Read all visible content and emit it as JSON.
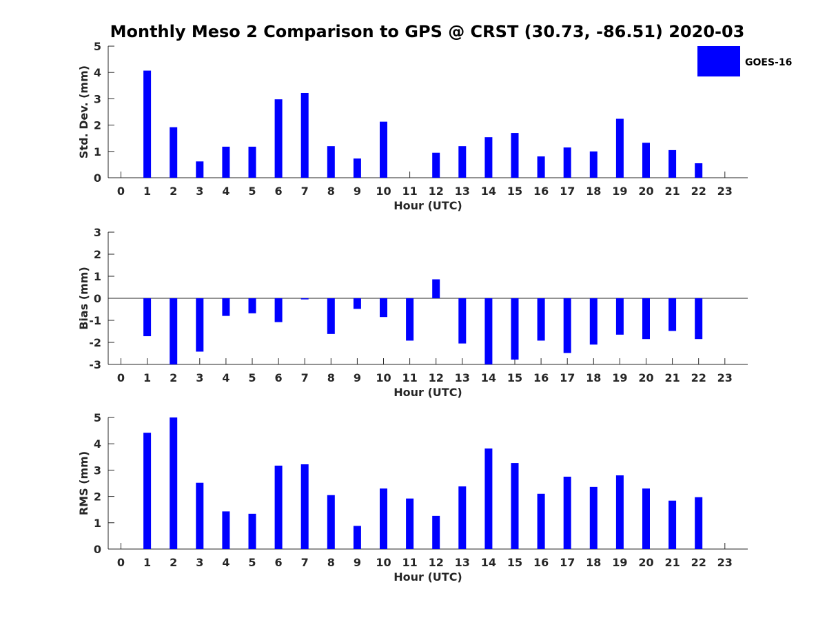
{
  "title": "Monthly Meso 2 Comparison to GPS @ CRST (30.73, -86.51) 2020-03",
  "colors": {
    "bar": "#0000ff",
    "axis": "#262626",
    "background": "#ffffff"
  },
  "chart_data": [
    {
      "type": "bar",
      "xlabel": "Hour (UTC)",
      "ylabel": "Std. Dev. (mm)",
      "ylim": [
        0,
        5
      ],
      "yticks": [
        0,
        1,
        2,
        3,
        4,
        5
      ],
      "categories": [
        "0",
        "1",
        "2",
        "3",
        "4",
        "5",
        "6",
        "7",
        "8",
        "9",
        "10",
        "11",
        "12",
        "13",
        "14",
        "15",
        "16",
        "17",
        "18",
        "19",
        "20",
        "21",
        "22",
        "23"
      ],
      "series": [
        {
          "name": "GOES-16",
          "values": [
            null,
            4.07,
            1.92,
            0.62,
            1.18,
            1.18,
            2.98,
            3.22,
            1.2,
            0.73,
            2.13,
            null,
            0.95,
            1.2,
            1.54,
            1.7,
            0.81,
            1.15,
            1.0,
            2.24,
            1.33,
            1.05,
            0.55,
            null
          ]
        }
      ],
      "legend": {
        "position": "top-right",
        "entries": [
          "GOES-16"
        ]
      }
    },
    {
      "type": "bar",
      "xlabel": "Hour (UTC)",
      "ylabel": "Bias (mm)",
      "ylim": [
        -3,
        3
      ],
      "yticks": [
        -3,
        -2,
        -1,
        0,
        1,
        2,
        3
      ],
      "categories": [
        "0",
        "1",
        "2",
        "3",
        "4",
        "5",
        "6",
        "7",
        "8",
        "9",
        "10",
        "11",
        "12",
        "13",
        "14",
        "15",
        "16",
        "17",
        "18",
        "19",
        "20",
        "21",
        "22",
        "23"
      ],
      "zero_line": true,
      "series": [
        {
          "name": "GOES-16",
          "values": [
            null,
            -1.72,
            -3.0,
            -2.42,
            -0.8,
            -0.68,
            -1.08,
            -0.05,
            -1.62,
            -0.48,
            -0.85,
            -1.92,
            0.86,
            -2.05,
            -3.0,
            -2.78,
            -1.92,
            -2.48,
            -2.1,
            -1.65,
            -1.85,
            -1.48,
            -1.85,
            null
          ]
        }
      ]
    },
    {
      "type": "bar",
      "xlabel": "Hour (UTC)",
      "ylabel": "RMS (mm)",
      "ylim": [
        0,
        5
      ],
      "yticks": [
        0,
        1,
        2,
        3,
        4,
        5
      ],
      "categories": [
        "0",
        "1",
        "2",
        "3",
        "4",
        "5",
        "6",
        "7",
        "8",
        "9",
        "10",
        "11",
        "12",
        "13",
        "14",
        "15",
        "16",
        "17",
        "18",
        "19",
        "20",
        "21",
        "22",
        "23"
      ],
      "series": [
        {
          "name": "GOES-16",
          "values": [
            null,
            4.42,
            5.0,
            2.52,
            1.43,
            1.34,
            3.17,
            3.22,
            2.05,
            0.88,
            2.3,
            1.92,
            1.26,
            2.38,
            3.82,
            3.27,
            2.1,
            2.75,
            2.36,
            2.8,
            2.3,
            1.84,
            1.97,
            null
          ]
        }
      ]
    }
  ]
}
